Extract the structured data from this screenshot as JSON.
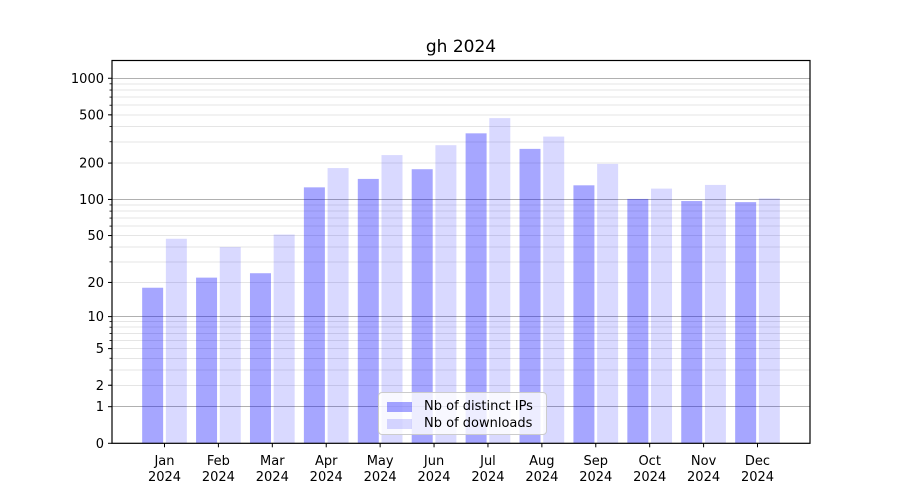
{
  "title": "gh 2024",
  "chart_data": {
    "type": "bar",
    "title": "gh 2024",
    "categories": [
      "Jan 2024",
      "Feb 2024",
      "Mar 2024",
      "Apr 2024",
      "May 2024",
      "Jun 2024",
      "Jul 2024",
      "Aug 2024",
      "Sep 2024",
      "Oct 2024",
      "Nov 2024",
      "Dec 2024"
    ],
    "series": [
      {
        "name": "Nb of distinct IPs",
        "color": "#0000ff",
        "alpha": 0.35,
        "values": [
          18,
          22,
          24,
          126,
          148,
          178,
          352,
          262,
          131,
          101,
          97,
          95
        ]
      },
      {
        "name": "Nb of downloads",
        "color": "#0000ff",
        "alpha": 0.15,
        "values": [
          47,
          40,
          51,
          182,
          233,
          281,
          470,
          331,
          197,
          123,
          132,
          102
        ]
      }
    ],
    "xlabel": "",
    "ylabel": "",
    "y_scale": "log1p",
    "y_tick_labels": [
      0,
      1,
      2,
      5,
      10,
      20,
      50,
      100,
      200,
      500,
      1000
    ],
    "ylim": [
      0,
      1400
    ],
    "grid": {
      "major": [
        1,
        10,
        100,
        1000
      ],
      "minor_per_decade": [
        2,
        3,
        4,
        5,
        6,
        7,
        8,
        9
      ]
    },
    "legend_position": "lower-center"
  },
  "colors": {
    "grid_major": "#b0b0b0",
    "grid_minor": "#e5e5e5",
    "axis": "#000000",
    "text": "#000000",
    "background": "#ffffff"
  }
}
